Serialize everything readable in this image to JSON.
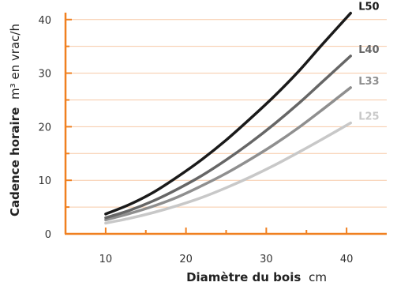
{
  "chart_data": {
    "type": "line",
    "xlabel_bold": "Diamètre du bois",
    "xlabel_unit": "cm",
    "ylabel_bold": "Cadence horaire",
    "ylabel_unit": "m³ en vrac/h",
    "xlim": [
      5,
      45
    ],
    "ylim": [
      0,
      41
    ],
    "x_ticks": [
      10,
      20,
      30,
      40
    ],
    "y_ticks": [
      0,
      10,
      20,
      30,
      40
    ],
    "grid": true,
    "colors": {
      "axis": "#f08020",
      "grid": "#f7c9a6"
    },
    "series": [
      {
        "name": "L50",
        "color": "#1a1a1a",
        "x": [
          10,
          13,
          16,
          19,
          22,
          25,
          28,
          31,
          34,
          37,
          40.5
        ],
        "y": [
          3.7,
          5.5,
          7.8,
          10.7,
          13.9,
          17.5,
          21.5,
          25.7,
          30.3,
          35.4,
          41.2
        ]
      },
      {
        "name": "L40",
        "color": "#666666",
        "x": [
          10,
          13,
          16,
          19,
          22,
          25,
          28,
          31,
          34,
          37,
          40.5
        ],
        "y": [
          3.0,
          4.4,
          6.2,
          8.4,
          10.9,
          13.8,
          17.0,
          20.5,
          24.3,
          28.4,
          33.2
        ]
      },
      {
        "name": "L33",
        "color": "#8f8f8f",
        "x": [
          10,
          13,
          16,
          19,
          22,
          25,
          28,
          31,
          34,
          37,
          40.5
        ],
        "y": [
          2.6,
          3.8,
          5.2,
          6.9,
          9.0,
          11.3,
          13.9,
          16.7,
          19.8,
          23.2,
          27.3
        ]
      },
      {
        "name": "L25",
        "color": "#c8c8c8",
        "x": [
          10,
          13,
          16,
          19,
          22,
          25,
          28,
          31,
          34,
          37,
          40.5
        ],
        "y": [
          2.0,
          2.9,
          4.0,
          5.3,
          6.8,
          8.6,
          10.6,
          12.8,
          15.2,
          17.7,
          20.7
        ]
      }
    ]
  }
}
